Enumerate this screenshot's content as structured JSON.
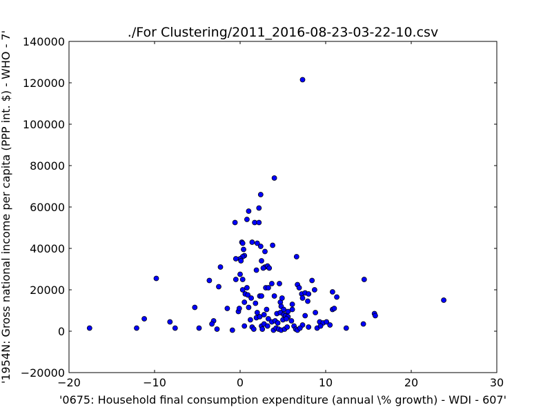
{
  "chart_data": {
    "type": "scatter",
    "title": "./For Clustering/2011_2016-08-23-03-22-10.csv",
    "xlabel": "'0675: Household final consumption expenditure  (annual \\% growth) - WDI - 607'",
    "ylabel": "'1954N: Gross national income per capita (PPP int. $) - WHO - 7'",
    "xlim": [
      -20,
      30
    ],
    "ylim": [
      -20000,
      140000
    ],
    "xticks": [
      -20,
      -10,
      0,
      10,
      20,
      30
    ],
    "yticks": [
      -20000,
      0,
      20000,
      40000,
      60000,
      80000,
      100000,
      120000,
      140000
    ],
    "xtick_labels": [
      "−20",
      "−10",
      "0",
      "10",
      "20",
      "30"
    ],
    "ytick_labels": [
      "−20000",
      "0",
      "20000",
      "40000",
      "60000",
      "80000",
      "100000",
      "120000",
      "140000"
    ],
    "grid": false,
    "marker_color": "#0000ff",
    "marker_edge_color": "#000000",
    "points": [
      {
        "x": 7.3,
        "y": 121500
      },
      {
        "x": 4.0,
        "y": 74000
      },
      {
        "x": 2.4,
        "y": 66000
      },
      {
        "x": 2.2,
        "y": 59500
      },
      {
        "x": 1.0,
        "y": 58000
      },
      {
        "x": 0.8,
        "y": 54000
      },
      {
        "x": -0.6,
        "y": 52500
      },
      {
        "x": 1.7,
        "y": 52500
      },
      {
        "x": 2.2,
        "y": 52500
      },
      {
        "x": 0.2,
        "y": 43000
      },
      {
        "x": 0.3,
        "y": 42500
      },
      {
        "x": 1.4,
        "y": 43000
      },
      {
        "x": 2.0,
        "y": 42500
      },
      {
        "x": 2.4,
        "y": 41000
      },
      {
        "x": 3.8,
        "y": 41500
      },
      {
        "x": 0.4,
        "y": 39500
      },
      {
        "x": 2.9,
        "y": 38500
      },
      {
        "x": 0.5,
        "y": 36500
      },
      {
        "x": 0.3,
        "y": 36000
      },
      {
        "x": 0.0,
        "y": 35000
      },
      {
        "x": -0.5,
        "y": 35000
      },
      {
        "x": 0.1,
        "y": 34000
      },
      {
        "x": 2.5,
        "y": 34000
      },
      {
        "x": 6.6,
        "y": 36000
      },
      {
        "x": -2.3,
        "y": 31000
      },
      {
        "x": 2.9,
        "y": 31000
      },
      {
        "x": 3.2,
        "y": 31500
      },
      {
        "x": 2.7,
        "y": 30500
      },
      {
        "x": 3.4,
        "y": 30500
      },
      {
        "x": 1.9,
        "y": 29500
      },
      {
        "x": 0.0,
        "y": 27500
      },
      {
        "x": -9.8,
        "y": 25500
      },
      {
        "x": -3.6,
        "y": 24500
      },
      {
        "x": -0.5,
        "y": 25000
      },
      {
        "x": 0.3,
        "y": 25000
      },
      {
        "x": 8.4,
        "y": 24500
      },
      {
        "x": 14.5,
        "y": 25000
      },
      {
        "x": -2.5,
        "y": 21500
      },
      {
        "x": 0.8,
        "y": 21000
      },
      {
        "x": 3.0,
        "y": 21000
      },
      {
        "x": 3.3,
        "y": 21000
      },
      {
        "x": 3.7,
        "y": 23000
      },
      {
        "x": 4.6,
        "y": 23000
      },
      {
        "x": 6.7,
        "y": 22500
      },
      {
        "x": 6.9,
        "y": 21000
      },
      {
        "x": 0.3,
        "y": 20000
      },
      {
        "x": 0.6,
        "y": 18000
      },
      {
        "x": 0.9,
        "y": 17500
      },
      {
        "x": 1.3,
        "y": 16000
      },
      {
        "x": 2.3,
        "y": 17000
      },
      {
        "x": 2.5,
        "y": 17000
      },
      {
        "x": 4.0,
        "y": 17000
      },
      {
        "x": 7.2,
        "y": 18000
      },
      {
        "x": 7.6,
        "y": 18500
      },
      {
        "x": 8.0,
        "y": 18000
      },
      {
        "x": 8.7,
        "y": 20000
      },
      {
        "x": 10.8,
        "y": 19000
      },
      {
        "x": 11.3,
        "y": 16500
      },
      {
        "x": 0.5,
        "y": 14000
      },
      {
        "x": 1.8,
        "y": 13500
      },
      {
        "x": 4.7,
        "y": 14000
      },
      {
        "x": 4.9,
        "y": 16000
      },
      {
        "x": 6.1,
        "y": 13000
      },
      {
        "x": 7.3,
        "y": 16000
      },
      {
        "x": 7.9,
        "y": 14500
      },
      {
        "x": -5.3,
        "y": 11500
      },
      {
        "x": -1.5,
        "y": 11000
      },
      {
        "x": 1.0,
        "y": 11500
      },
      {
        "x": 3.1,
        "y": 10500
      },
      {
        "x": 4.8,
        "y": 12000
      },
      {
        "x": 5.1,
        "y": 10500
      },
      {
        "x": 5.6,
        "y": 9500
      },
      {
        "x": 6.1,
        "y": 10500
      },
      {
        "x": 10.8,
        "y": 10500
      },
      {
        "x": 11.0,
        "y": 11000
      },
      {
        "x": -0.2,
        "y": 9500
      },
      {
        "x": 2.0,
        "y": 9000
      },
      {
        "x": 4.3,
        "y": 8500
      },
      {
        "x": 4.7,
        "y": 9000
      },
      {
        "x": 5.1,
        "y": 8000
      },
      {
        "x": 5.3,
        "y": 7500
      },
      {
        "x": 5.6,
        "y": 7000
      },
      {
        "x": 7.6,
        "y": 7500
      },
      {
        "x": 8.8,
        "y": 9000
      },
      {
        "x": 15.7,
        "y": 8500
      },
      {
        "x": 15.8,
        "y": 7500
      },
      {
        "x": -11.2,
        "y": 6000
      },
      {
        "x": -8.2,
        "y": 4500
      },
      {
        "x": -3.1,
        "y": 5000
      },
      {
        "x": 1.2,
        "y": 5500
      },
      {
        "x": 1.9,
        "y": 6500
      },
      {
        "x": 2.3,
        "y": 7000
      },
      {
        "x": 2.8,
        "y": 8000
      },
      {
        "x": 3.3,
        "y": 6000
      },
      {
        "x": 3.7,
        "y": 4500
      },
      {
        "x": 4.1,
        "y": 5000
      },
      {
        "x": 4.4,
        "y": 4000
      },
      {
        "x": 5.0,
        "y": 5500
      },
      {
        "x": 5.4,
        "y": 6000
      },
      {
        "x": 6.0,
        "y": 5000
      },
      {
        "x": 7.3,
        "y": 3000
      },
      {
        "x": 9.3,
        "y": 4500
      },
      {
        "x": 9.7,
        "y": 4000
      },
      {
        "x": 10.1,
        "y": 4500
      },
      {
        "x": 10.5,
        "y": 3000
      },
      {
        "x": 14.4,
        "y": 3500
      },
      {
        "x": 23.8,
        "y": 15000
      },
      {
        "x": -17.6,
        "y": 1500
      },
      {
        "x": -12.1,
        "y": 1500
      },
      {
        "x": -7.6,
        "y": 1500
      },
      {
        "x": -4.8,
        "y": 1500
      },
      {
        "x": -3.3,
        "y": 3500
      },
      {
        "x": -2.7,
        "y": 1000
      },
      {
        "x": -0.9,
        "y": 500
      },
      {
        "x": 0.5,
        "y": 2500
      },
      {
        "x": 1.4,
        "y": 2000
      },
      {
        "x": 1.6,
        "y": 1000
      },
      {
        "x": 2.5,
        "y": 2500
      },
      {
        "x": 2.6,
        "y": 1000
      },
      {
        "x": 2.8,
        "y": 3500
      },
      {
        "x": 3.2,
        "y": 2500
      },
      {
        "x": 3.9,
        "y": 500
      },
      {
        "x": 4.2,
        "y": 1500
      },
      {
        "x": 4.5,
        "y": 1000
      },
      {
        "x": 4.8,
        "y": 500
      },
      {
        "x": 5.2,
        "y": 1000
      },
      {
        "x": 5.5,
        "y": 2000
      },
      {
        "x": 6.3,
        "y": 2500
      },
      {
        "x": 6.5,
        "y": 1000
      },
      {
        "x": 6.7,
        "y": 500
      },
      {
        "x": 7.0,
        "y": 1500
      },
      {
        "x": 8.0,
        "y": 2000
      },
      {
        "x": 9.0,
        "y": 1500
      },
      {
        "x": 9.4,
        "y": 2500
      },
      {
        "x": 12.4,
        "y": 1500
      },
      {
        "x": -0.1,
        "y": 11000
      }
    ]
  }
}
